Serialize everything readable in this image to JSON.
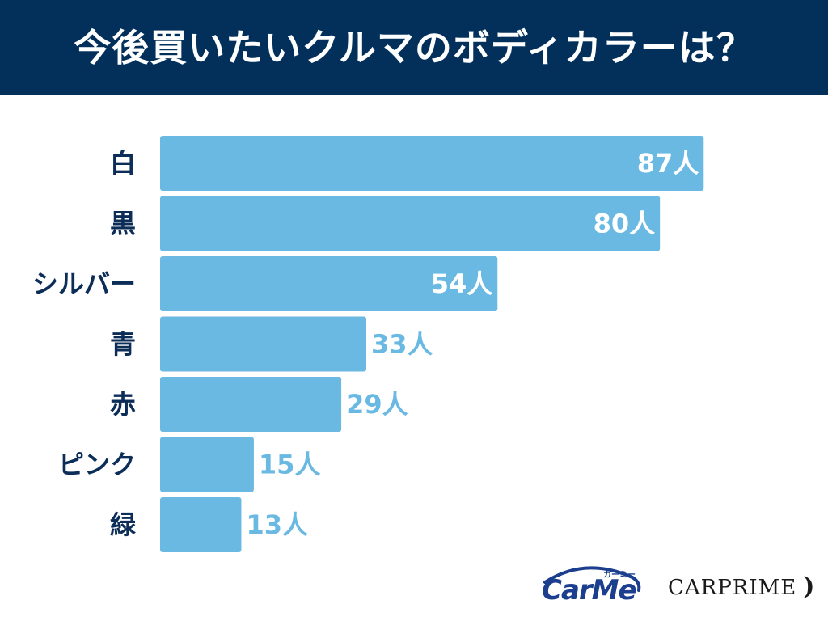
{
  "title": "今後買いたいクルマのボディカラーは？",
  "colors": {
    "header_bg": "#02305a",
    "bar": "#69b9e3",
    "category_text": "#0b2d57",
    "value_inside": "#ffffff",
    "value_outside": "#69b9e3"
  },
  "chart_data": {
    "type": "bar",
    "orientation": "horizontal",
    "title": "今後買いたいクルマのボディカラーは？",
    "categories": [
      "白",
      "黒",
      "シルバー",
      "青",
      "赤",
      "ピンク",
      "緑"
    ],
    "values": [
      87,
      80,
      54,
      33,
      29,
      15,
      13
    ],
    "value_labels": [
      "87人",
      "80人",
      "54人",
      "33人",
      "29人",
      "15人",
      "13人"
    ],
    "unit": "人",
    "xlabel": "",
    "ylabel": "",
    "xlim": [
      0,
      88
    ],
    "grid": false
  },
  "logos": {
    "carme": "CarMe",
    "carme_kana": "カーミー",
    "carprime": "CARPRIME",
    "carprime_mark": ")"
  }
}
